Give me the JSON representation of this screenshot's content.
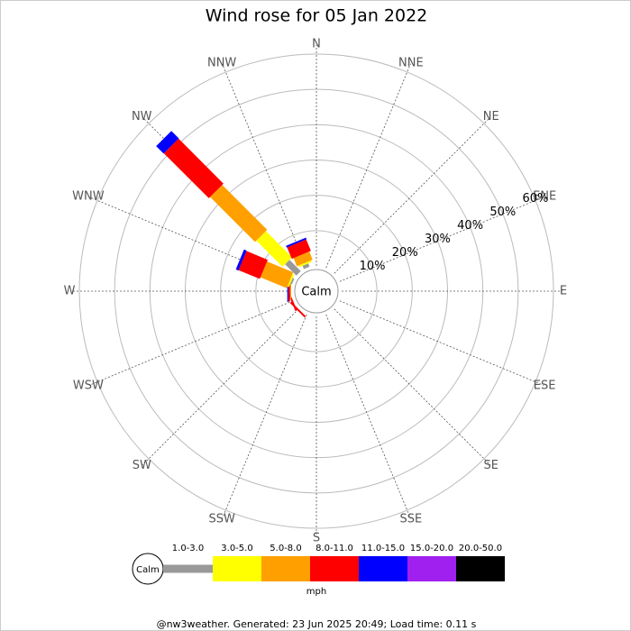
{
  "chart_data": {
    "type": "windrose",
    "title": "Wind rose for 05 Jan 2022",
    "directions": [
      "N",
      "NNE",
      "NE",
      "ENE",
      "E",
      "ESE",
      "SE",
      "SSE",
      "S",
      "SSW",
      "SW",
      "WSW",
      "W",
      "WNW",
      "NW",
      "NNW"
    ],
    "series": [
      {
        "name": "1.0-3.0",
        "color": "#999999",
        "values": [
          0,
          0,
          0,
          0,
          0,
          0,
          0,
          0,
          0,
          0,
          0,
          0,
          0,
          0.5,
          4.5,
          1
        ]
      },
      {
        "name": "3.0-5.0",
        "color": "#ffff00",
        "values": [
          0,
          0,
          0,
          0,
          0,
          0,
          0,
          0,
          0,
          0,
          0,
          0,
          0,
          0.5,
          10.5,
          0.5
        ]
      },
      {
        "name": "5.0-8.0",
        "color": "#ffa000",
        "values": [
          0,
          0,
          0,
          0,
          0,
          0,
          0,
          0,
          0,
          0,
          0,
          0,
          0.3,
          8,
          18,
          2.5
        ]
      },
      {
        "name": "8.0-11.0",
        "color": "#ff0000",
        "values": [
          0,
          0,
          0,
          0,
          0,
          0,
          0,
          0,
          0,
          0,
          0.5,
          0.5,
          0.5,
          6.5,
          18,
          3.5
        ]
      },
      {
        "name": "11.0-15.0",
        "color": "#0000ff",
        "values": [
          0,
          0,
          0,
          0,
          0,
          0,
          0,
          0,
          0,
          0,
          0,
          0,
          0.3,
          0.8,
          3,
          0.5
        ]
      },
      {
        "name": "15.0-20.0",
        "color": "#a020f0",
        "values": [
          0,
          0,
          0,
          0,
          0,
          0,
          0,
          0,
          0,
          0,
          0,
          0,
          0,
          0,
          0,
          0
        ]
      },
      {
        "name": "20.0-50.0",
        "color": "#000000",
        "values": [
          0,
          0,
          0,
          0,
          0,
          0,
          0,
          0,
          0,
          0,
          0,
          0,
          0,
          0,
          0,
          0
        ]
      }
    ],
    "rlim": [
      0,
      60
    ],
    "rticks": [
      {
        "value": 10,
        "label": "10%"
      },
      {
        "value": 20,
        "label": "20%"
      },
      {
        "value": 30,
        "label": "30%"
      },
      {
        "value": 40,
        "label": "40%"
      },
      {
        "value": 50,
        "label": "50%"
      },
      {
        "value": 60,
        "label": "60%"
      }
    ],
    "calm_label": "Calm",
    "unit": "mph",
    "footer": "@nw3weather. Generated: 23 Jun 2025 20:49; Load time: 0.11 s"
  }
}
